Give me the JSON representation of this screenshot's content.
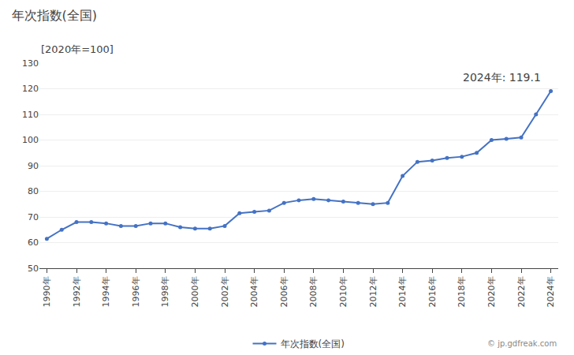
{
  "chart_data": {
    "type": "line",
    "title": "年次指数(全国)",
    "subtitle": "[2020年=100]",
    "annotations": [
      "2024年: 119.1",
      "© jp.gdfreak.com"
    ],
    "x": [
      1990,
      1991,
      1992,
      1993,
      1994,
      1995,
      1996,
      1997,
      1998,
      1999,
      2000,
      2001,
      2002,
      2003,
      2004,
      2005,
      2006,
      2007,
      2008,
      2009,
      2010,
      2011,
      2012,
      2013,
      2014,
      2015,
      2016,
      2017,
      2018,
      2019,
      2020,
      2021,
      2022,
      2023,
      2024
    ],
    "series": [
      {
        "name": "年次指数(全国)",
        "color": "#4472C4",
        "marker": "circle",
        "line_style": "solid",
        "values": [
          61.5,
          65.0,
          68.0,
          68.0,
          67.5,
          66.5,
          66.5,
          67.5,
          67.5,
          66.0,
          65.5,
          65.5,
          66.5,
          71.5,
          72.0,
          72.5,
          75.5,
          76.5,
          77.0,
          76.5,
          76.0,
          75.5,
          75.0,
          75.5,
          86.0,
          91.5,
          92.0,
          93.0,
          93.5,
          95.0,
          100.0,
          100.5,
          101.0,
          110.0,
          119.1
        ]
      }
    ],
    "xlim": [
      1989.5,
      2024.5
    ],
    "xticks": [
      {
        "value": 1990,
        "label": "1990年"
      },
      {
        "value": 1992,
        "label": "1992年"
      },
      {
        "value": 1994,
        "label": "1994年"
      },
      {
        "value": 1996,
        "label": "1996年"
      },
      {
        "value": 1998,
        "label": "1998年"
      },
      {
        "value": 2000,
        "label": "2000年"
      },
      {
        "value": 2002,
        "label": "2002年"
      },
      {
        "value": 2004,
        "label": "2004年"
      },
      {
        "value": 2006,
        "label": "2006年"
      },
      {
        "value": 2008,
        "label": "2008年"
      },
      {
        "value": 2010,
        "label": "2010年"
      },
      {
        "value": 2012,
        "label": "2012年"
      },
      {
        "value": 2014,
        "label": "2014年"
      },
      {
        "value": 2016,
        "label": "2016年"
      },
      {
        "value": 2018,
        "label": "2018年"
      },
      {
        "value": 2020,
        "label": "2020年"
      },
      {
        "value": 2022,
        "label": "2022年"
      },
      {
        "value": 2024,
        "label": "2024年"
      }
    ],
    "ylim": [
      50,
      130
    ],
    "yticks": [
      50,
      60,
      70,
      80,
      90,
      100,
      110,
      120,
      130
    ],
    "grid": true,
    "legend": "bottom"
  }
}
